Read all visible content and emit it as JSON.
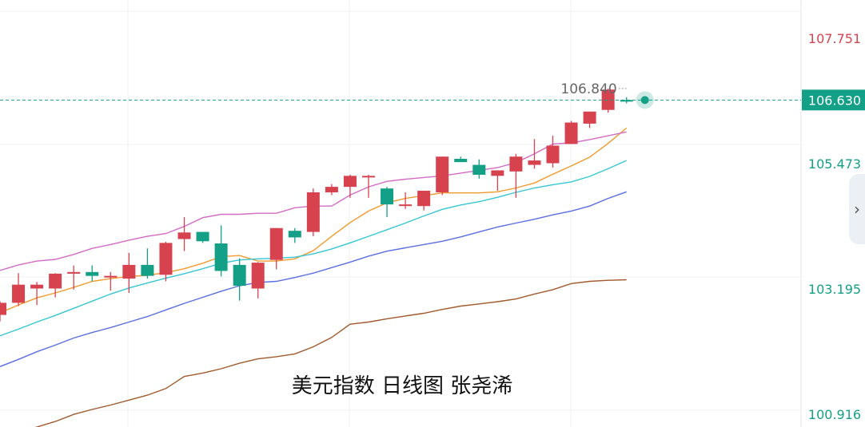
{
  "caption": "美元指数 日线图  张尧浠",
  "colors": {
    "up": "#d6434f",
    "down": "#13a087",
    "current_price": "#13a087",
    "top_axis_label": "#d6434f",
    "axis_label": "#13a087",
    "ma5": "#f29a2e",
    "ma10": "#36c6d3",
    "ma20": "#5b6ee1",
    "ma60": "#a05a2c",
    "band": "#d36bc4"
  },
  "icons": {
    "expand_tab": "chevron-right-icon",
    "price_marker": "dot-marker-icon"
  },
  "chart_data": {
    "type": "candlestick",
    "title": "美元指数 日线图  张尧浠",
    "y_axis_labels": [
      "107.751",
      "105.473",
      "103.195",
      "100.916"
    ],
    "ylim": [
      100.68,
      108.45
    ],
    "current_price": "106.630",
    "high_label": "106.840",
    "grid": true,
    "candles": [
      {
        "o": 102.72,
        "h": 102.97,
        "l": 102.6,
        "c": 102.94
      },
      {
        "o": 102.94,
        "h": 103.48,
        "l": 102.88,
        "c": 103.27
      },
      {
        "o": 103.2,
        "h": 103.32,
        "l": 102.9,
        "c": 103.27
      },
      {
        "o": 103.2,
        "h": 103.48,
        "l": 103.04,
        "c": 103.47
      },
      {
        "o": 103.47,
        "h": 103.62,
        "l": 103.18,
        "c": 103.5
      },
      {
        "o": 103.5,
        "h": 103.62,
        "l": 103.33,
        "c": 103.43
      },
      {
        "o": 103.4,
        "h": 103.5,
        "l": 103.16,
        "c": 103.43
      },
      {
        "o": 103.38,
        "h": 103.85,
        "l": 103.12,
        "c": 103.63
      },
      {
        "o": 103.63,
        "h": 103.93,
        "l": 103.38,
        "c": 103.43
      },
      {
        "o": 103.45,
        "h": 104.05,
        "l": 103.33,
        "c": 104.03
      },
      {
        "o": 104.1,
        "h": 104.5,
        "l": 103.88,
        "c": 104.22
      },
      {
        "o": 104.23,
        "h": 104.23,
        "l": 104.03,
        "c": 104.06
      },
      {
        "o": 104.02,
        "h": 104.35,
        "l": 103.42,
        "c": 103.52
      },
      {
        "o": 103.63,
        "h": 103.75,
        "l": 102.98,
        "c": 103.25
      },
      {
        "o": 103.2,
        "h": 103.68,
        "l": 103.02,
        "c": 103.67
      },
      {
        "o": 103.72,
        "h": 104.3,
        "l": 103.55,
        "c": 104.3
      },
      {
        "o": 104.25,
        "h": 104.3,
        "l": 104.03,
        "c": 104.13
      },
      {
        "o": 104.23,
        "h": 105.02,
        "l": 104.15,
        "c": 104.95
      },
      {
        "o": 104.95,
        "h": 105.1,
        "l": 104.9,
        "c": 105.05
      },
      {
        "o": 105.05,
        "h": 105.27,
        "l": 104.85,
        "c": 105.25
      },
      {
        "o": 105.25,
        "h": 105.27,
        "l": 104.85,
        "c": 105.25
      },
      {
        "o": 105.02,
        "h": 105.05,
        "l": 104.5,
        "c": 104.73
      },
      {
        "o": 104.73,
        "h": 104.95,
        "l": 104.65,
        "c": 104.73
      },
      {
        "o": 104.7,
        "h": 104.97,
        "l": 104.62,
        "c": 104.98
      },
      {
        "o": 104.95,
        "h": 105.6,
        "l": 104.9,
        "c": 105.6
      },
      {
        "o": 105.56,
        "h": 105.6,
        "l": 105.52,
        "c": 105.5
      },
      {
        "o": 105.45,
        "h": 105.55,
        "l": 105.2,
        "c": 105.27
      },
      {
        "o": 105.25,
        "h": 105.35,
        "l": 104.98,
        "c": 105.35
      },
      {
        "o": 105.33,
        "h": 105.65,
        "l": 104.85,
        "c": 105.6
      },
      {
        "o": 105.45,
        "h": 105.92,
        "l": 105.38,
        "c": 105.53
      },
      {
        "o": 105.48,
        "h": 105.98,
        "l": 105.4,
        "c": 105.8
      },
      {
        "o": 105.83,
        "h": 106.25,
        "l": 105.83,
        "c": 106.22
      },
      {
        "o": 106.2,
        "h": 106.4,
        "l": 106.12,
        "c": 106.42
      },
      {
        "o": 106.45,
        "h": 106.84,
        "l": 106.4,
        "c": 106.82
      },
      {
        "o": 106.63,
        "h": 106.68,
        "l": 106.57,
        "c": 106.61
      }
    ],
    "series": [
      {
        "kind": "ma5",
        "values": [
          102.76,
          102.9,
          103.03,
          103.12,
          103.22,
          103.33,
          103.38,
          103.42,
          103.44,
          103.49,
          103.56,
          103.66,
          103.78,
          103.8,
          103.7,
          103.7,
          103.74,
          103.89,
          104.15,
          104.4,
          104.61,
          104.76,
          104.84,
          104.89,
          104.94,
          104.94,
          104.94,
          104.96,
          105.03,
          105.12,
          105.28,
          105.43,
          105.59,
          105.84,
          106.12
        ]
      },
      {
        "kind": "ma10",
        "values": [
          102.34,
          102.46,
          102.59,
          102.71,
          102.84,
          102.97,
          103.1,
          103.21,
          103.3,
          103.39,
          103.47,
          103.56,
          103.66,
          103.72,
          103.74,
          103.75,
          103.77,
          103.83,
          103.92,
          104.03,
          104.15,
          104.27,
          104.39,
          104.52,
          104.64,
          104.72,
          104.78,
          104.86,
          104.95,
          105.03,
          105.09,
          105.14,
          105.24,
          105.38,
          105.53
        ]
      },
      {
        "kind": "ma20",
        "values": [
          101.78,
          101.91,
          102.05,
          102.17,
          102.3,
          102.4,
          102.49,
          102.59,
          102.69,
          102.81,
          102.93,
          103.04,
          103.15,
          103.25,
          103.31,
          103.33,
          103.4,
          103.48,
          103.58,
          103.68,
          103.79,
          103.88,
          103.94,
          104.0,
          104.06,
          104.14,
          104.23,
          104.32,
          104.39,
          104.46,
          104.54,
          104.61,
          104.7,
          104.84,
          104.96
        ]
      },
      {
        "kind": "ma60",
        "values": [
          100.49,
          100.58,
          100.68,
          100.78,
          100.91,
          101.0,
          101.08,
          101.17,
          101.26,
          101.38,
          101.6,
          101.66,
          101.74,
          101.84,
          101.92,
          101.96,
          102.01,
          102.14,
          102.31,
          102.55,
          102.59,
          102.65,
          102.7,
          102.75,
          102.82,
          102.88,
          102.92,
          102.96,
          103.01,
          103.1,
          103.18,
          103.29,
          103.33,
          103.35,
          103.36
        ]
      },
      {
        "kind": "band",
        "values": [
          103.53,
          103.63,
          103.7,
          103.73,
          103.82,
          103.93,
          104.0,
          104.08,
          104.15,
          104.2,
          104.33,
          104.49,
          104.55,
          104.55,
          104.57,
          104.57,
          104.67,
          104.7,
          104.7,
          104.9,
          105.05,
          105.15,
          105.19,
          105.22,
          105.25,
          105.3,
          105.35,
          105.4,
          105.49,
          105.65,
          105.83,
          105.85,
          105.91,
          105.98,
          106.05
        ]
      }
    ]
  }
}
